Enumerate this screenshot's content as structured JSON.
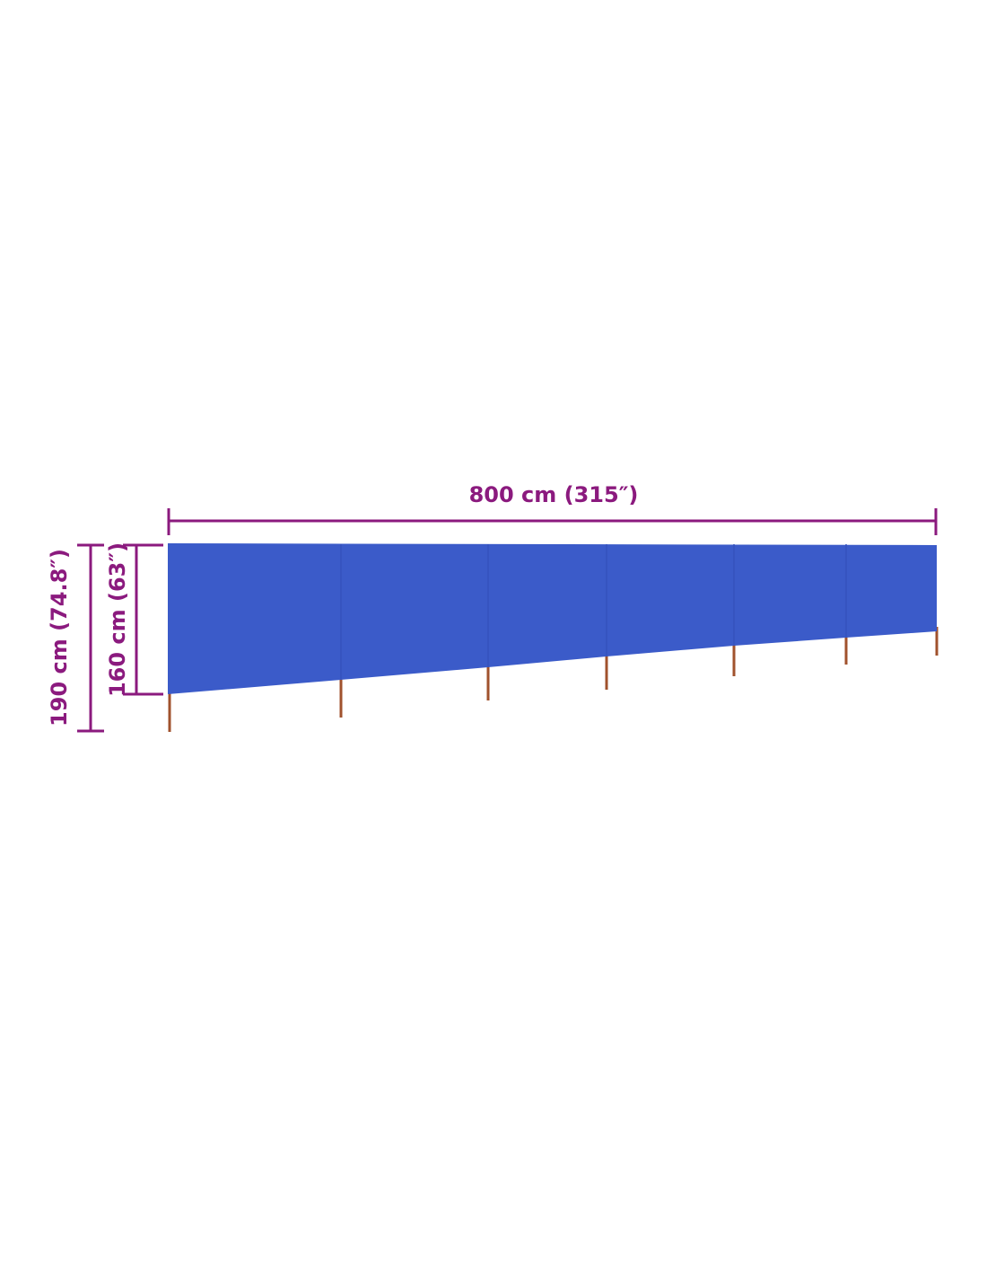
{
  "dimensions": {
    "width_label": "800 cm (315″)",
    "panel_height_label": "160 cm (63″)",
    "total_height_label": "190 cm (74.8″)"
  },
  "colors": {
    "dimension": "#8b1a7e",
    "fabric": "#3b5bc9",
    "pole": "#a0522d"
  },
  "panels": 6
}
